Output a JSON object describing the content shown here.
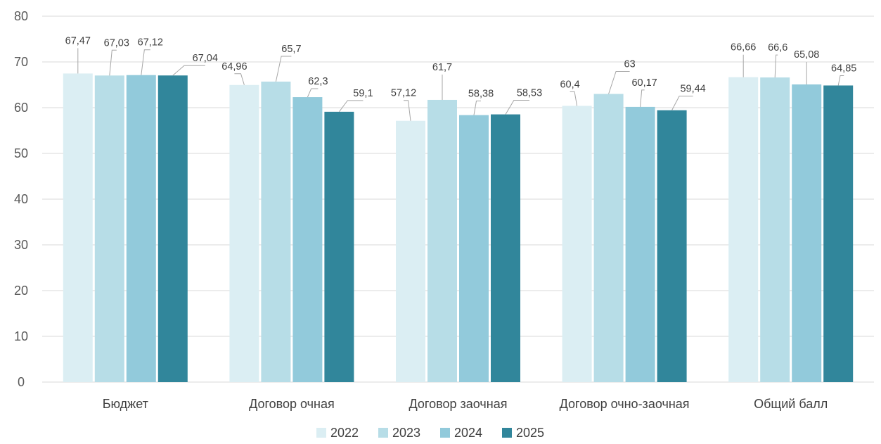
{
  "chart_data": {
    "type": "bar",
    "categories": [
      "Бюджет",
      "Договор очная",
      "Договор заочная",
      "Договор очно-заочная",
      "Общий балл"
    ],
    "series": [
      {
        "name": "2022",
        "color": "#dbeef3",
        "values": [
          67.47,
          64.96,
          57.12,
          60.4,
          66.66
        ],
        "labels": [
          "67,47",
          "64,96",
          "57,12",
          "60,4",
          "66,66"
        ]
      },
      {
        "name": "2023",
        "color": "#b7dde7",
        "values": [
          67.03,
          65.7,
          61.7,
          63,
          66.6
        ],
        "labels": [
          "67,03",
          "65,7",
          "61,7",
          "63",
          "66,6"
        ]
      },
      {
        "name": "2024",
        "color": "#92cadb",
        "values": [
          67.12,
          62.3,
          58.38,
          60.17,
          65.08
        ],
        "labels": [
          "67,12",
          "62,3",
          "58,38",
          "60,17",
          "65,08"
        ]
      },
      {
        "name": "2025",
        "color": "#31869b",
        "values": [
          67.04,
          59.1,
          58.53,
          59.44,
          64.85
        ],
        "labels": [
          "67,04",
          "59,1",
          "58,53",
          "59,44",
          "64,85"
        ]
      }
    ],
    "ylim": [
      0,
      80
    ],
    "yticks": [
      0,
      10,
      20,
      30,
      40,
      50,
      60,
      70,
      80
    ],
    "ytick_labels": [
      "0",
      "10",
      "20",
      "30",
      "40",
      "50",
      "60",
      "70",
      "80"
    ],
    "grid": true,
    "legend_position": "bottom",
    "title": "",
    "xlabel": "",
    "ylabel": ""
  }
}
